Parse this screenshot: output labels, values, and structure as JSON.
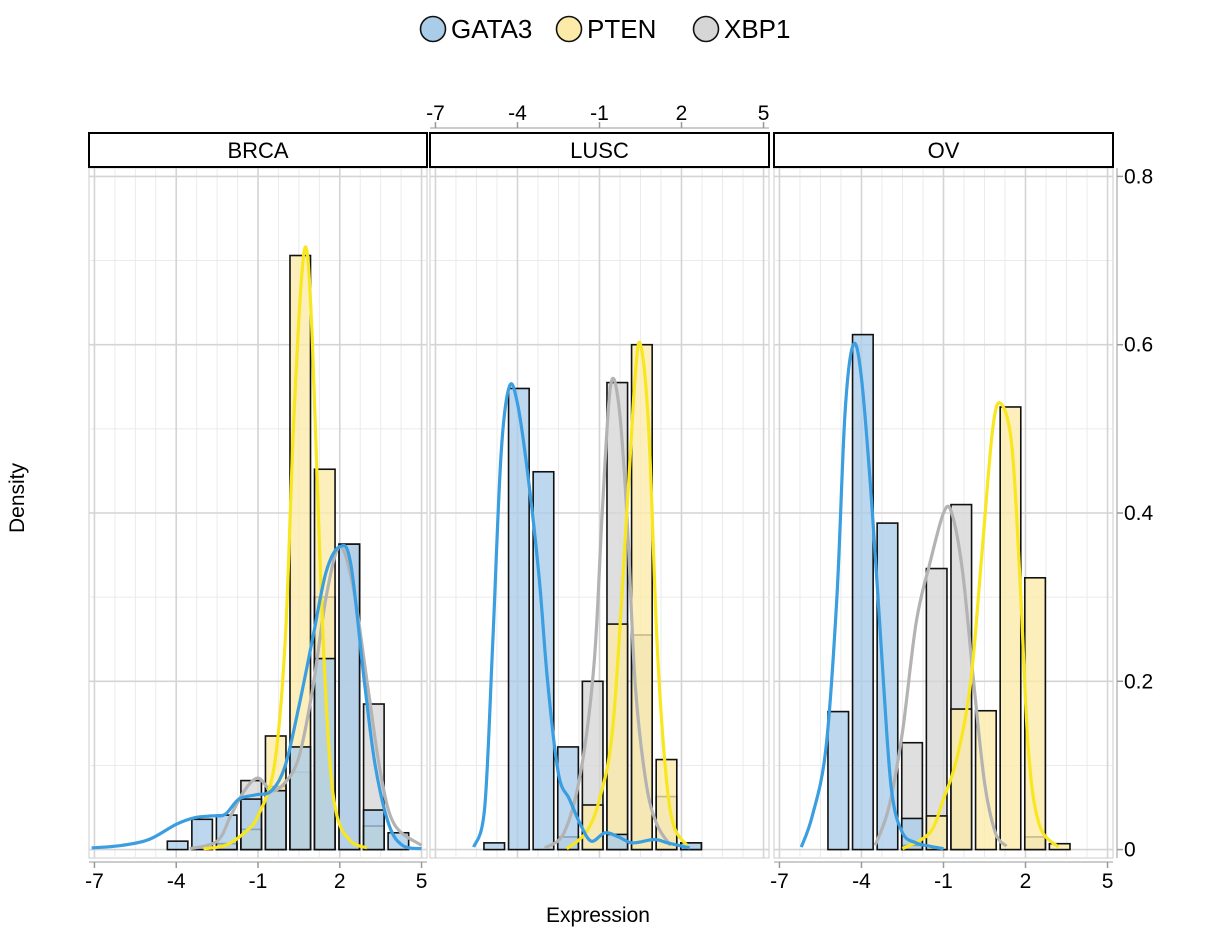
{
  "chart_data": {
    "type": "histogram_density_facets",
    "xlabel": "Expression",
    "ylabel": "Density",
    "xlim": [
      -7.2,
      5.2
    ],
    "ylim": [
      -0.01,
      0.81
    ],
    "x_ticks": [
      -7,
      -4,
      -1,
      2,
      5
    ],
    "x_tick_labels": [
      "-7",
      "-4",
      "-1",
      "2",
      "5"
    ],
    "y_ticks": [
      0,
      0.2,
      0.4,
      0.6,
      0.8
    ],
    "y_tick_labels": [
      "0",
      "0.2",
      "0.4",
      "0.6",
      "0.8"
    ],
    "grid": true,
    "legend": {
      "position": "top",
      "entries": [
        "GATA3",
        "PTEN",
        "XBP1"
      ]
    },
    "bin_width": 0.9,
    "colors": {
      "GATA3": {
        "fill": "#a9cce9",
        "line": "#3a9ee0"
      },
      "PTEN": {
        "fill": "#fbeaa8",
        "line": "#f8e61e"
      },
      "XBP1": {
        "fill": "#d6d6d6",
        "line": "#b3b3b3"
      }
    },
    "panels": [
      {
        "name": "BRCA",
        "series": [
          {
            "name": "GATA3",
            "bins": [
              [
                -4.4,
                0.01
              ],
              [
                -3.5,
                0.036
              ],
              [
                -2.6,
                0.041
              ],
              [
                -1.7,
                0.06
              ],
              [
                -0.8,
                0.07
              ],
              [
                0.1,
                0.122
              ],
              [
                1.0,
                0.227
              ],
              [
                1.9,
                0.363
              ],
              [
                2.8,
                0.047
              ],
              [
                3.7,
                0.02
              ]
            ],
            "density": [
              [
                -7.1,
                0.002
              ],
              [
                -6,
                0.005
              ],
              [
                -5,
                0.012
              ],
              [
                -4,
                0.03
              ],
              [
                -3.3,
                0.038
              ],
              [
                -2.7,
                0.04
              ],
              [
                -2.2,
                0.042
              ],
              [
                -1.7,
                0.06
              ],
              [
                -1.1,
                0.065
              ],
              [
                -0.5,
                0.07
              ],
              [
                0,
                0.1
              ],
              [
                0.5,
                0.17
              ],
              [
                1.0,
                0.25
              ],
              [
                1.5,
                0.33
              ],
              [
                2.0,
                0.36
              ],
              [
                2.4,
                0.34
              ],
              [
                2.9,
                0.2
              ],
              [
                3.3,
                0.1
              ],
              [
                3.8,
                0.03
              ],
              [
                4.3,
                0.005
              ],
              [
                5,
                0.001
              ]
            ]
          },
          {
            "name": "PTEN",
            "bins": [
              [
                -2.6,
                0.007
              ],
              [
                -1.7,
                0.024
              ],
              [
                -0.8,
                0.135
              ],
              [
                0.1,
                0.706
              ],
              [
                1.0,
                0.452
              ],
              [
                1.9,
                0.0
              ],
              [
                2.8,
                0.028
              ]
            ],
            "density": [
              [
                -3,
                0.001
              ],
              [
                -2.2,
                0.005
              ],
              [
                -1.5,
                0.02
              ],
              [
                -1.0,
                0.04
              ],
              [
                -0.4,
                0.1
              ],
              [
                0,
                0.25
              ],
              [
                0.3,
                0.5
              ],
              [
                0.6,
                0.68
              ],
              [
                0.8,
                0.71
              ],
              [
                1.0,
                0.6
              ],
              [
                1.3,
                0.32
              ],
              [
                1.6,
                0.12
              ],
              [
                1.9,
                0.04
              ],
              [
                2.4,
                0.01
              ],
              [
                3,
                0.002
              ]
            ]
          },
          {
            "name": "XBP1",
            "bins": [
              [
                -2.6,
                0.007
              ],
              [
                -1.7,
                0.082
              ],
              [
                -0.8,
                0.075
              ],
              [
                0.1,
                0.092
              ],
              [
                1.0,
                0.3
              ],
              [
                1.9,
                0.363
              ],
              [
                2.8,
                0.173
              ],
              [
                3.7,
                0.0
              ]
            ],
            "density": [
              [
                -3.5,
                0.001
              ],
              [
                -2.5,
                0.01
              ],
              [
                -2,
                0.04
              ],
              [
                -1.5,
                0.07
              ],
              [
                -1,
                0.085
              ],
              [
                -0.5,
                0.07
              ],
              [
                0,
                0.08
              ],
              [
                0.5,
                0.11
              ],
              [
                1,
                0.19
              ],
              [
                1.5,
                0.3
              ],
              [
                2,
                0.36
              ],
              [
                2.5,
                0.31
              ],
              [
                3,
                0.2
              ],
              [
                3.5,
                0.09
              ],
              [
                4,
                0.03
              ],
              [
                5,
                0.005
              ]
            ]
          }
        ]
      },
      {
        "name": "LUSC",
        "series": [
          {
            "name": "GATA3",
            "bins": [
              [
                -5.3,
                0.008
              ],
              [
                -4.4,
                0.548
              ],
              [
                -3.5,
                0.449
              ],
              [
                -2.6,
                0.122
              ],
              [
                -1.7,
                0.0
              ],
              [
                -0.8,
                0.018
              ],
              [
                0.1,
                0.0
              ],
              [
                1.0,
                0.0
              ],
              [
                1.9,
                0.008
              ]
            ],
            "density": [
              [
                -5.6,
                0.003
              ],
              [
                -5.2,
                0.05
              ],
              [
                -4.9,
                0.25
              ],
              [
                -4.6,
                0.47
              ],
              [
                -4.3,
                0.55
              ],
              [
                -4.0,
                0.53
              ],
              [
                -3.6,
                0.44
              ],
              [
                -3.2,
                0.32
              ],
              [
                -2.9,
                0.2
              ],
              [
                -2.5,
                0.09
              ],
              [
                -2.1,
                0.06
              ],
              [
                -1.7,
                0.03
              ],
              [
                -1.3,
                0.01
              ],
              [
                -0.8,
                0.02
              ],
              [
                -0.3,
                0.015
              ],
              [
                0.2,
                0.008
              ],
              [
                1,
                0.012
              ],
              [
                1.5,
                0.008
              ],
              [
                2.3,
                0.002
              ]
            ]
          },
          {
            "name": "PTEN",
            "bins": [
              [
                -1.7,
                0.053
              ],
              [
                -0.8,
                0.268
              ],
              [
                0.1,
                0.6
              ],
              [
                1.0,
                0.107
              ],
              [
                1.9,
                0.0
              ]
            ],
            "density": [
              [
                -2.2,
                0.001
              ],
              [
                -1.5,
                0.02
              ],
              [
                -1,
                0.06
              ],
              [
                -0.5,
                0.15
              ],
              [
                0,
                0.4
              ],
              [
                0.3,
                0.56
              ],
              [
                0.5,
                0.6
              ],
              [
                0.8,
                0.5
              ],
              [
                1.1,
                0.25
              ],
              [
                1.4,
                0.1
              ],
              [
                1.7,
                0.03
              ],
              [
                2.2,
                0.005
              ]
            ]
          },
          {
            "name": "XBP1",
            "bins": [
              [
                -2.6,
                0.015
              ],
              [
                -1.7,
                0.2
              ],
              [
                -0.8,
                0.555
              ],
              [
                0.1,
                0.255
              ],
              [
                1.0,
                0.063
              ],
              [
                1.9,
                0.008
              ]
            ],
            "density": [
              [
                -3,
                0.002
              ],
              [
                -2.3,
                0.02
              ],
              [
                -1.7,
                0.09
              ],
              [
                -1.2,
                0.22
              ],
              [
                -0.9,
                0.4
              ],
              [
                -0.6,
                0.55
              ],
              [
                -0.3,
                0.53
              ],
              [
                0,
                0.4
              ],
              [
                0.3,
                0.2
              ],
              [
                0.7,
                0.08
              ],
              [
                1.1,
                0.03
              ],
              [
                1.6,
                0.005
              ]
            ]
          }
        ]
      },
      {
        "name": "OV",
        "series": [
          {
            "name": "GATA3",
            "bins": [
              [
                -5.3,
                0.164
              ],
              [
                -4.4,
                0.612
              ],
              [
                -3.5,
                0.388
              ],
              [
                -2.6,
                0.037
              ],
              [
                -1.7,
                0.0
              ],
              [
                -0.8,
                0.0
              ],
              [
                0.1,
                0.0
              ],
              [
                1.0,
                0.0
              ],
              [
                1.9,
                0.0
              ]
            ],
            "density": [
              [
                -6.2,
                0.003
              ],
              [
                -5.8,
                0.04
              ],
              [
                -5.3,
                0.12
              ],
              [
                -4.9,
                0.3
              ],
              [
                -4.6,
                0.52
              ],
              [
                -4.3,
                0.6
              ],
              [
                -4.0,
                0.56
              ],
              [
                -3.6,
                0.4
              ],
              [
                -3.2,
                0.2
              ],
              [
                -2.9,
                0.07
              ],
              [
                -2.5,
                0.02
              ],
              [
                -2,
                0.008
              ],
              [
                -1.5,
                0.004
              ],
              [
                -1,
                0.001
              ]
            ]
          },
          {
            "name": "PTEN",
            "bins": [
              [
                -2.6,
                0.005
              ],
              [
                -1.7,
                0.04
              ],
              [
                -0.8,
                0.167
              ],
              [
                0.1,
                0.165
              ],
              [
                1.0,
                0.526
              ],
              [
                1.9,
                0.323
              ],
              [
                2.8,
                0.007
              ]
            ],
            "density": [
              [
                -2.5,
                0.001
              ],
              [
                -1.5,
                0.02
              ],
              [
                -1,
                0.06
              ],
              [
                -0.5,
                0.11
              ],
              [
                0,
                0.2
              ],
              [
                0.4,
                0.35
              ],
              [
                0.8,
                0.5
              ],
              [
                1.1,
                0.53
              ],
              [
                1.5,
                0.48
              ],
              [
                1.8,
                0.32
              ],
              [
                2.1,
                0.12
              ],
              [
                2.5,
                0.03
              ],
              [
                3.2,
                0.003
              ]
            ]
          },
          {
            "name": "XBP1",
            "bins": [
              [
                -3.5,
                0.0
              ],
              [
                -2.6,
                0.127
              ],
              [
                -1.7,
                0.334
              ],
              [
                -0.8,
                0.41
              ],
              [
                0.1,
                0.0
              ],
              [
                1.0,
                0.0
              ],
              [
                1.9,
                0.015
              ]
            ],
            "density": [
              [
                -3.5,
                0.005
              ],
              [
                -3,
                0.05
              ],
              [
                -2.5,
                0.14
              ],
              [
                -2,
                0.27
              ],
              [
                -1.5,
                0.34
              ],
              [
                -1,
                0.4
              ],
              [
                -0.7,
                0.4
              ],
              [
                -0.3,
                0.33
              ],
              [
                0.1,
                0.2
              ],
              [
                0.5,
                0.08
              ],
              [
                0.9,
                0.02
              ],
              [
                1.3,
                0.004
              ]
            ]
          }
        ]
      }
    ]
  }
}
